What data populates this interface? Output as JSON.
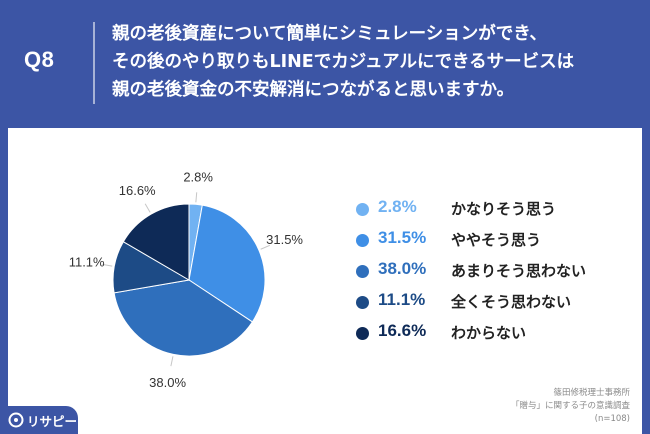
{
  "header": {
    "question_number": "Q8",
    "question_lines": [
      "親の老後資産について簡単にシミュレーションができ、",
      "その後のやり取りもLINEでカジュアルにできるサービスは",
      "親の老後資金の不安解消につながると思いますか。"
    ]
  },
  "chart_data": {
    "type": "pie",
    "categories": [
      "かなりそう思う",
      "ややそう思う",
      "あまりそう思わない",
      "全くそう思わない",
      "わからない"
    ],
    "values": [
      2.8,
      31.5,
      38.0,
      11.1,
      16.6
    ],
    "value_labels": [
      "2.8%",
      "31.5%",
      "38.0%",
      "11.1%",
      "16.6%"
    ],
    "colors": [
      "#71b2f2",
      "#3f8fe6",
      "#2f6fbc",
      "#1d4b86",
      "#0e2a57"
    ],
    "start_angle_deg": 0,
    "direction": "clockwise",
    "legend_position": "right"
  },
  "legend": {
    "items": [
      {
        "pct": "2.8%",
        "label": "かなりそう思う",
        "color": "#71b2f2"
      },
      {
        "pct": "31.5%",
        "label": "ややそう思う",
        "color": "#3f8fe6"
      },
      {
        "pct": "38.0%",
        "label": "あまりそう思わない",
        "color": "#2f6fbc"
      },
      {
        "pct": "11.1%",
        "label": "全くそう思わない",
        "color": "#1d4b86"
      },
      {
        "pct": "16.6%",
        "label": "わからない",
        "color": "#0e2a57"
      }
    ]
  },
  "source": {
    "lines": [
      "篠田修税理士事務所",
      "「贈与」に関する子の意識調査",
      "(n=108)"
    ]
  },
  "logo": {
    "text": "リサピー"
  },
  "colors": {
    "background": "#3c55a5",
    "card": "#ffffff"
  }
}
